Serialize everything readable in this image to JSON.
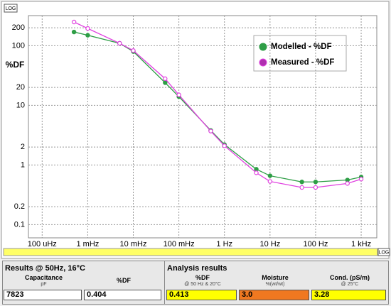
{
  "chart_data": {
    "type": "line",
    "xscale": "log",
    "yscale": "log",
    "grid": true,
    "y_label": "%DF",
    "log_badge_y": "LOG",
    "log_badge_x": "LOG",
    "x": [
      0.0005,
      0.001,
      0.005,
      0.01,
      0.05,
      0.1,
      0.5,
      1,
      5,
      10,
      50,
      100,
      500,
      1000
    ],
    "series": [
      {
        "name": "Modelled - %DF",
        "color": "#2e9e46",
        "marker_fill": "#2e9e46",
        "values": [
          170,
          150,
          110,
          80,
          24,
          14,
          3.8,
          2.2,
          0.85,
          0.66,
          0.52,
          0.52,
          0.56,
          0.63
        ]
      },
      {
        "name": "Measured - %DF",
        "color": "#e040e0",
        "marker_fill": "#ffffff",
        "values": [
          250,
          195,
          110,
          83,
          28,
          15,
          3.7,
          2.1,
          0.74,
          0.53,
          0.42,
          0.42,
          0.49,
          0.58
        ]
      }
    ],
    "xlim": [
      5e-05,
      2200
    ],
    "ylim": [
      0.06,
      320
    ],
    "xticks": [
      {
        "value": 0.0001,
        "label": "100 uHz"
      },
      {
        "value": 0.001,
        "label": "1 mHz"
      },
      {
        "value": 0.01,
        "label": "10 mHz"
      },
      {
        "value": 0.1,
        "label": "100 mHz"
      },
      {
        "value": 1,
        "label": "1 Hz"
      },
      {
        "value": 10,
        "label": "10 Hz"
      },
      {
        "value": 100,
        "label": "100 Hz"
      },
      {
        "value": 1000,
        "label": "1 kHz"
      }
    ],
    "yticks": [
      0.1,
      0.2,
      1,
      2,
      10,
      20,
      100,
      200
    ]
  },
  "results": {
    "title": "Results @ 50Hz, 16°C",
    "columns": [
      {
        "label": "Capacitance",
        "unit": "pF",
        "value": "7823",
        "color": "#ffffff"
      },
      {
        "label": "%DF",
        "value": "0.404",
        "color": "#ffffff"
      }
    ]
  },
  "analysis": {
    "title": "Analysis results",
    "columns": [
      {
        "label": "%DF",
        "unit": "@ 50 Hz & 20°C",
        "value": "0.413",
        "color": "#ffff00"
      },
      {
        "label": "Moisture",
        "unit": "%(wt/wt)",
        "value": "3.0",
        "color": "#f07820"
      },
      {
        "label": "Cond. (pS/m)",
        "unit": "@ 25°C",
        "value": "3.28",
        "color": "#ffff00"
      }
    ]
  }
}
